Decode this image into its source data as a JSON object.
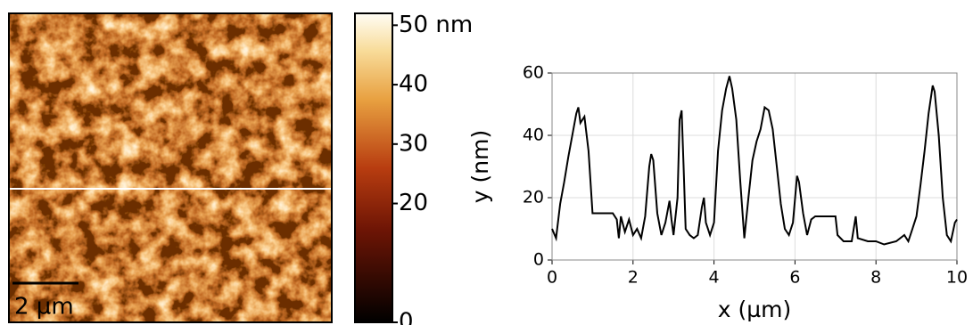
{
  "image": {
    "scale_bar": "2 µm",
    "colorbar": {
      "lim": [
        0,
        52
      ],
      "ticks": [
        {
          "value": 50,
          "label": "50 nm"
        },
        40,
        30,
        20,
        0
      ]
    }
  },
  "chart_data": {
    "type": "line",
    "xlabel": "x (µm)",
    "ylabel": "y (nm)",
    "xlim": [
      0,
      10
    ],
    "ylim": [
      0,
      60
    ],
    "xticks": [
      0,
      2,
      4,
      6,
      8,
      10
    ],
    "yticks": [
      0,
      20,
      40,
      60
    ],
    "grid": true,
    "x": [
      0,
      0.1,
      0.2,
      0.3,
      0.4,
      0.5,
      0.6,
      0.65,
      0.7,
      0.8,
      0.9,
      1.0,
      1.2,
      1.4,
      1.5,
      1.6,
      1.65,
      1.7,
      1.8,
      1.9,
      2.0,
      2.1,
      2.2,
      2.3,
      2.4,
      2.45,
      2.5,
      2.6,
      2.7,
      2.8,
      2.9,
      2.95,
      3.0,
      3.1,
      3.15,
      3.2,
      3.25,
      3.3,
      3.4,
      3.5,
      3.6,
      3.7,
      3.75,
      3.8,
      3.9,
      4.0,
      4.1,
      4.2,
      4.3,
      4.38,
      4.45,
      4.55,
      4.65,
      4.75,
      4.85,
      4.95,
      5.05,
      5.15,
      5.25,
      5.35,
      5.45,
      5.55,
      5.65,
      5.75,
      5.85,
      5.95,
      6.05,
      6.1,
      6.2,
      6.3,
      6.4,
      6.5,
      6.7,
      6.9,
      7.0,
      7.05,
      7.2,
      7.4,
      7.5,
      7.55,
      7.8,
      8.0,
      8.2,
      8.5,
      8.7,
      8.8,
      8.9,
      9.0,
      9.1,
      9.2,
      9.3,
      9.4,
      9.45,
      9.55,
      9.65,
      9.75,
      9.85,
      9.95,
      10.0
    ],
    "series": [
      {
        "color": "#000000",
        "values": [
          10,
          7,
          18,
          25,
          33,
          40,
          47,
          49,
          44,
          46,
          35,
          15,
          15,
          15,
          15,
          13,
          7,
          14,
          9,
          13,
          8,
          10,
          7,
          14,
          30,
          34,
          32,
          15,
          8,
          12,
          19,
          13,
          8,
          20,
          45,
          48,
          30,
          10,
          8,
          7,
          8,
          17,
          20,
          12,
          8,
          12,
          35,
          48,
          55,
          59,
          55,
          45,
          25,
          7,
          20,
          32,
          38,
          42,
          49,
          48,
          42,
          30,
          18,
          10,
          8,
          12,
          27,
          25,
          15,
          8,
          13,
          14,
          14,
          14,
          14,
          8,
          6,
          6,
          14,
          7,
          6,
          6,
          5,
          6,
          8,
          6,
          10,
          14,
          24,
          35,
          47,
          56,
          54,
          40,
          20,
          8,
          6,
          12,
          13
        ]
      }
    ]
  }
}
